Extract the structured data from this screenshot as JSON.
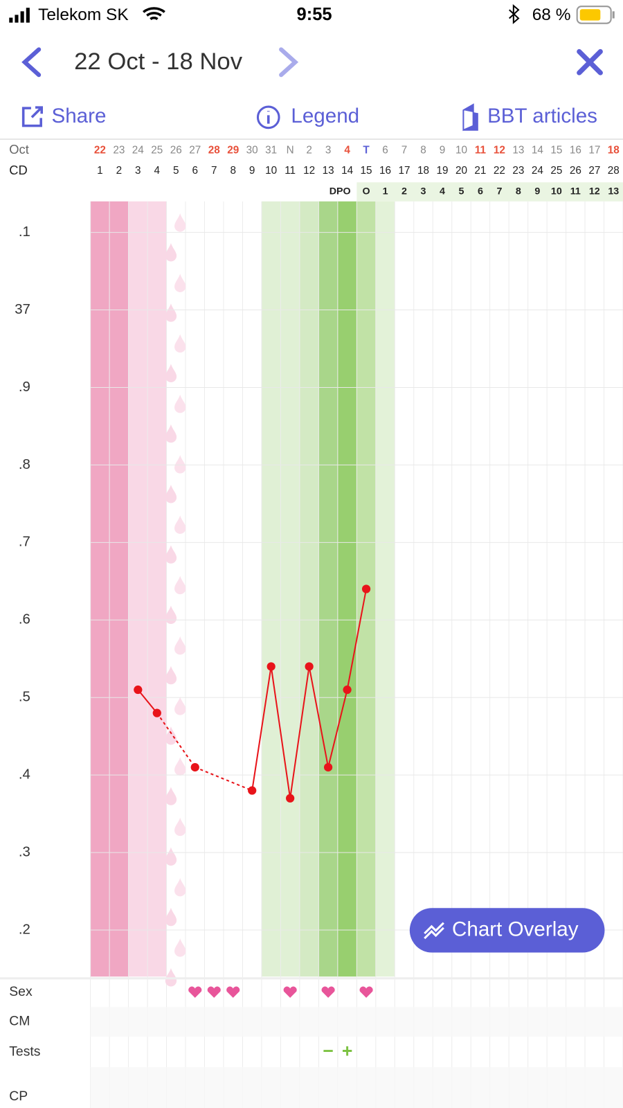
{
  "status_bar": {
    "carrier": "Telekom SK",
    "time": "9:55",
    "battery": "68 %"
  },
  "header": {
    "date_range": "22 Oct - 18 Nov"
  },
  "toolbar": {
    "share": "Share",
    "legend": "Legend",
    "articles": "BBT articles"
  },
  "chart_data": {
    "type": "line",
    "month_label": "Oct",
    "cd_label": "CD",
    "dpo_label": "DPO",
    "dates": [
      "22",
      "23",
      "24",
      "25",
      "26",
      "27",
      "28",
      "29",
      "30",
      "31",
      "N",
      "2",
      "3",
      "4",
      "T",
      "6",
      "7",
      "8",
      "9",
      "10",
      "11",
      "12",
      "13",
      "14",
      "15",
      "16",
      "17",
      "18"
    ],
    "red_date_indexes": [
      0,
      6,
      7,
      13,
      20,
      21,
      27
    ],
    "today_index": 14,
    "categories": [
      "1",
      "2",
      "3",
      "4",
      "5",
      "6",
      "7",
      "8",
      "9",
      "10",
      "11",
      "12",
      "13",
      "14",
      "15",
      "16",
      "17",
      "18",
      "19",
      "20",
      "21",
      "22",
      "23",
      "24",
      "25",
      "26",
      "27",
      "28"
    ],
    "dpo": [
      null,
      null,
      null,
      null,
      null,
      null,
      null,
      null,
      null,
      null,
      null,
      null,
      null,
      null,
      "O",
      "1",
      "2",
      "3",
      "4",
      "5",
      "6",
      "7",
      "8",
      "9",
      "10",
      "11",
      "12",
      "13"
    ],
    "band_colors": [
      "#f0a7c3",
      "#f0a7c3",
      "#f9d8e6",
      "#f9d8e6",
      null,
      null,
      null,
      null,
      null,
      "#e0f0d5",
      "#e0f0d5",
      "#d4eac4",
      "#a9d68a",
      "#98cf6f",
      "#c1e2a6",
      "#e3f2d8",
      null,
      null,
      null,
      null,
      null,
      null,
      null,
      null,
      null,
      null,
      null,
      null
    ],
    "series": [
      {
        "color": "#e8141a",
        "values": [
          null,
          null,
          36.51,
          36.48,
          null,
          36.41,
          null,
          null,
          36.38,
          36.54,
          36.37,
          36.54,
          36.41,
          36.51,
          36.64,
          null,
          null,
          null,
          null,
          null,
          null,
          null,
          null,
          null,
          null,
          null,
          null,
          null
        ]
      }
    ],
    "ylim": [
      36.14,
      37.14
    ],
    "yticks": [
      {
        "value": 37.1,
        "label": ".1"
      },
      37,
      {
        "value": 36.9,
        "label": ".9"
      },
      {
        "value": 36.8,
        "label": ".8"
      },
      {
        "value": 36.7,
        "label": ".7"
      },
      {
        "value": 36.6,
        "label": ".6"
      },
      {
        "value": 36.5,
        "label": ".5"
      },
      {
        "value": 36.4,
        "label": ".4"
      },
      {
        "value": 36.3,
        "label": ".3"
      },
      {
        "value": 36.2,
        "label": ".2"
      }
    ],
    "grid": true,
    "overlay_button": "Chart Overlay"
  },
  "bottom_rows": {
    "labels": [
      "Sex",
      "CM",
      "Tests",
      "CP"
    ],
    "sex_days": [
      6,
      7,
      8,
      11,
      13,
      15
    ],
    "tests": [
      {
        "day": 13,
        "label": "−"
      },
      {
        "day": 14,
        "label": "+"
      }
    ]
  }
}
